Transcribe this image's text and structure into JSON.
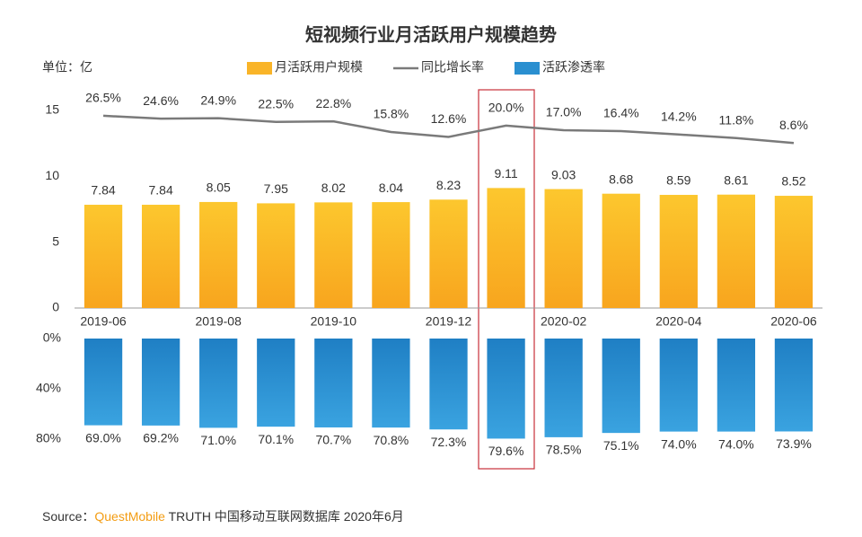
{
  "unit_label": "单位：亿",
  "source": {
    "prefix": "Source：",
    "brand": "QuestMobile",
    "rest": " TRUTH 中国移动互联网数据库 2020年6月"
  },
  "chart_data": [
    {
      "type": "bar-line",
      "title": "短视频行业月活跃用户规模趋势",
      "categories": [
        "2019-06",
        null,
        "2019-08",
        null,
        "2019-10",
        null,
        "2019-12",
        null,
        "2020-02",
        null,
        "2020-04",
        null,
        "2020-06"
      ],
      "ylim": [
        0,
        15
      ],
      "yticks": [
        0,
        5,
        10,
        15
      ],
      "y2lim": [
        -100,
        30
      ],
      "series": [
        {
          "name": "月活跃用户规模",
          "color": "#f9b428",
          "values": [
            7.84,
            7.84,
            8.05,
            7.95,
            8.02,
            8.04,
            8.23,
            9.11,
            9.03,
            8.68,
            8.59,
            8.61,
            8.52
          ]
        },
        {
          "name": "同比增长率",
          "color": "#7a7a7a",
          "axis": "y2",
          "values": [
            26.5,
            24.6,
            24.9,
            22.5,
            22.8,
            15.8,
            12.6,
            20.0,
            17.0,
            16.4,
            14.2,
            11.8,
            8.6
          ],
          "value_labels": [
            "26.5%",
            "24.6%",
            "24.9%",
            "22.5%",
            "22.8%",
            "15.8%",
            "12.6%",
            "20.0%",
            "17.0%",
            "16.4%",
            "14.2%",
            "11.8%",
            "8.6%"
          ]
        }
      ]
    },
    {
      "type": "bar",
      "ylim": [
        0,
        80
      ],
      "inverted": true,
      "yticks": [
        {
          "value": 0,
          "label": "0%"
        },
        {
          "value": 40,
          "label": "40%"
        },
        {
          "value": 80,
          "label": "80%"
        }
      ],
      "series": [
        {
          "name": "活跃渗透率",
          "color": "#2a8fd0",
          "values": [
            69.0,
            69.2,
            71.0,
            70.1,
            70.7,
            70.8,
            72.3,
            79.6,
            78.5,
            75.1,
            74.0,
            74.0,
            73.9
          ],
          "value_labels": [
            "69.0%",
            "69.2%",
            "71.0%",
            "70.1%",
            "70.7%",
            "70.8%",
            "72.3%",
            "79.6%",
            "78.5%",
            "75.1%",
            "74.0%",
            "74.0%",
            "73.9%"
          ]
        }
      ]
    }
  ]
}
